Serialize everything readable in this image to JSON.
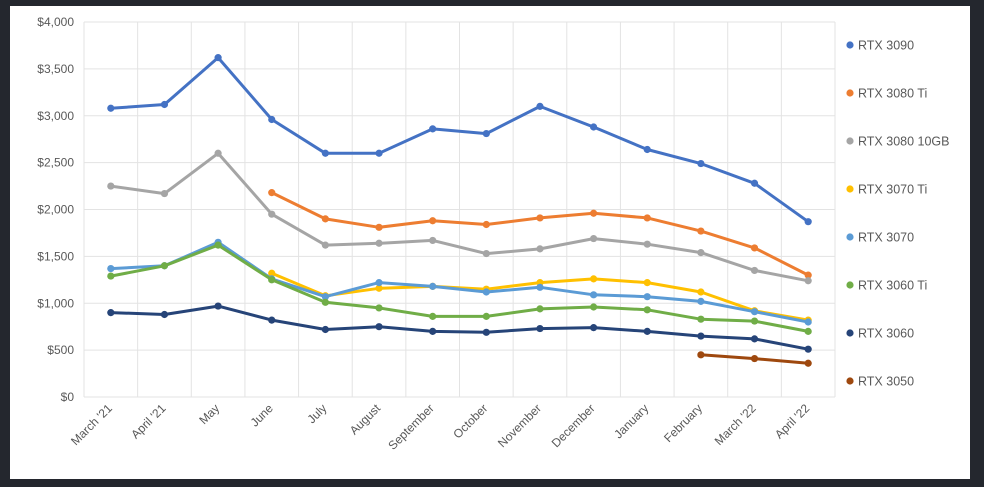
{
  "chart_data": {
    "type": "line",
    "title": "",
    "xlabel": "",
    "ylabel": "",
    "ylim": [
      0,
      4000
    ],
    "grid": true,
    "legend_position": "right",
    "y_ticks": [
      "$0",
      "$500",
      "$1,000",
      "$1,500",
      "$2,000",
      "$2,500",
      "$3,000",
      "$3,500",
      "$4,000"
    ],
    "categories": [
      "March '21",
      "April '21",
      "May",
      "June",
      "July",
      "August",
      "September",
      "October",
      "November",
      "December",
      "January",
      "February",
      "March '22",
      "April '22"
    ],
    "series": [
      {
        "name": "RTX 3090",
        "color": "#4472c4",
        "values": [
          3080,
          3120,
          3620,
          2960,
          2600,
          2600,
          2860,
          2810,
          3100,
          2880,
          2640,
          2490,
          2280,
          1870
        ]
      },
      {
        "name": "RTX 3080 Ti",
        "color": "#ed7d31",
        "values": [
          null,
          null,
          null,
          2180,
          1900,
          1810,
          1880,
          1840,
          1910,
          1960,
          1910,
          1770,
          1590,
          1300
        ]
      },
      {
        "name": "RTX 3080 10GB",
        "color": "#a5a5a5",
        "values": [
          2250,
          2170,
          2600,
          1950,
          1620,
          1640,
          1670,
          1530,
          1580,
          1690,
          1630,
          1540,
          1350,
          1240
        ]
      },
      {
        "name": "RTX 3070 Ti",
        "color": "#ffc000",
        "values": [
          null,
          null,
          null,
          1320,
          1080,
          1160,
          1180,
          1150,
          1220,
          1260,
          1220,
          1120,
          920,
          820
        ]
      },
      {
        "name": "RTX 3070",
        "color": "#5b9bd5",
        "values": [
          1370,
          1400,
          1650,
          1260,
          1070,
          1220,
          1180,
          1120,
          1170,
          1090,
          1070,
          1020,
          910,
          800
        ]
      },
      {
        "name": "RTX 3060 Ti",
        "color": "#70ad47",
        "values": [
          1290,
          1400,
          1620,
          1250,
          1010,
          950,
          860,
          860,
          940,
          960,
          930,
          830,
          810,
          700
        ]
      },
      {
        "name": "RTX 3060",
        "color": "#264478",
        "values": [
          900,
          880,
          970,
          820,
          720,
          750,
          700,
          690,
          730,
          740,
          700,
          650,
          620,
          510
        ]
      },
      {
        "name": "RTX 3050",
        "color": "#9e480e",
        "values": [
          null,
          null,
          null,
          null,
          null,
          null,
          null,
          null,
          null,
          null,
          null,
          450,
          410,
          360
        ]
      }
    ]
  }
}
